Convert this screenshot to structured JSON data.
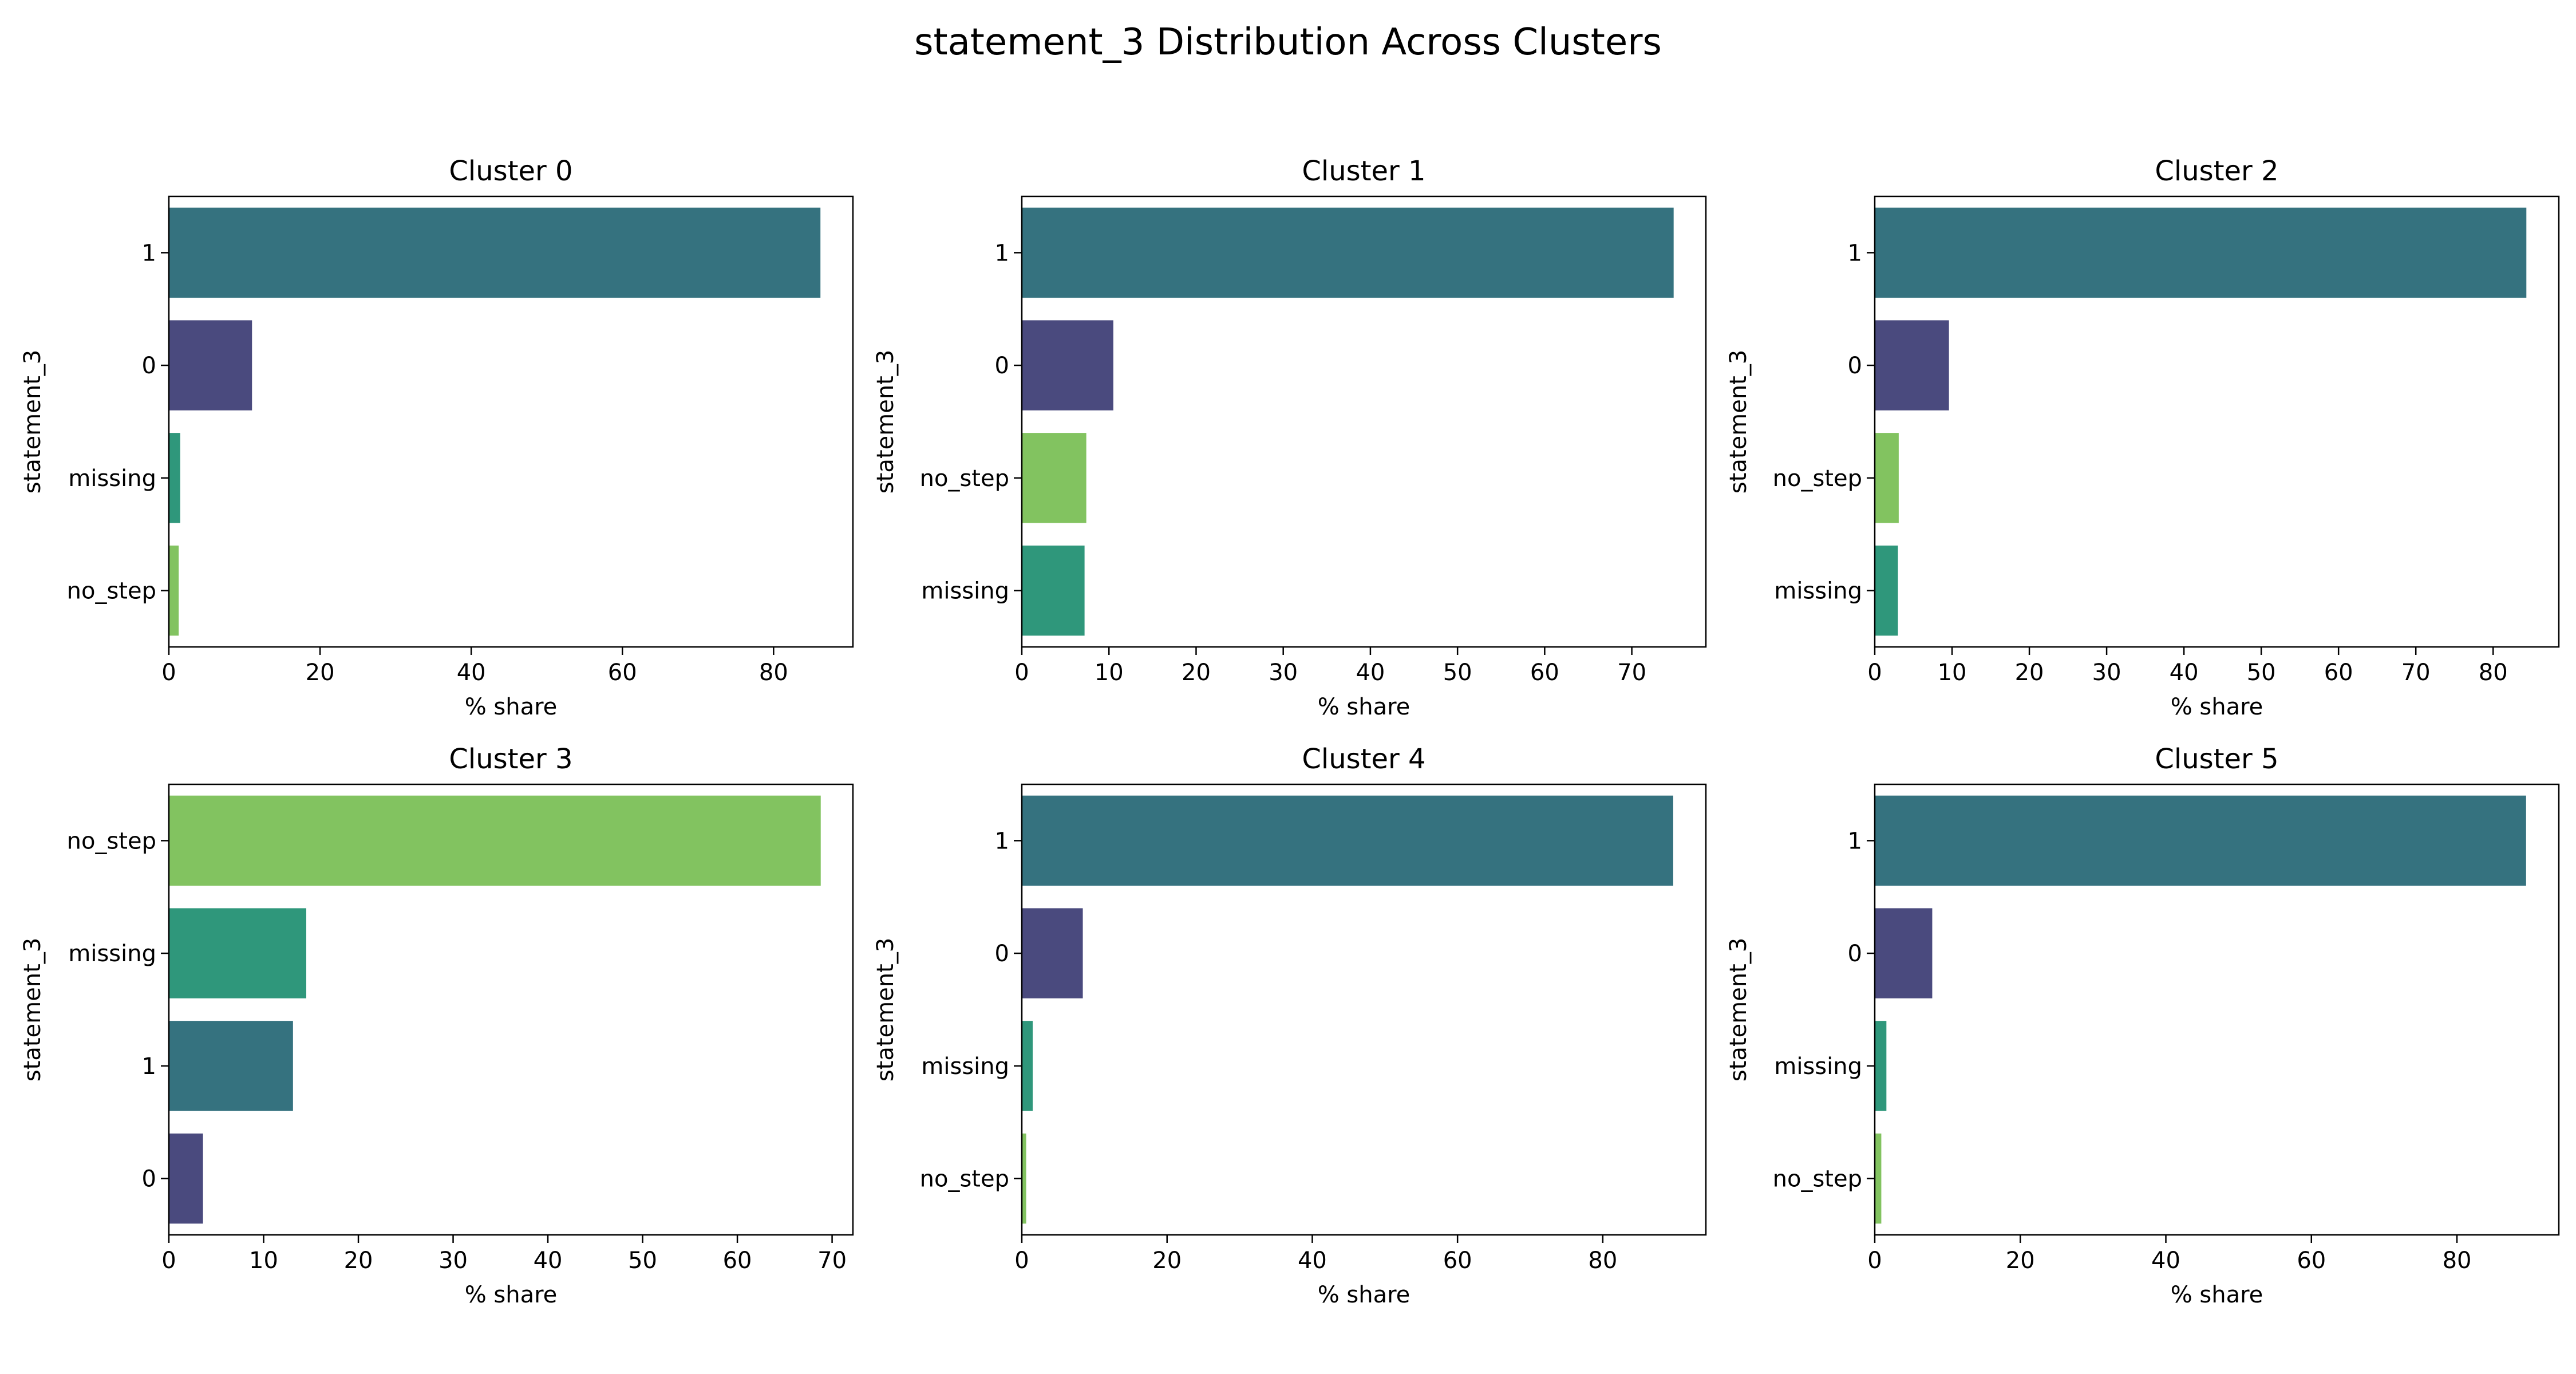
{
  "title": "statement_3 Distribution Across Clusters",
  "colors": {
    "1": "#35727F",
    "0": "#4A4A7E",
    "missing": "#2F977B",
    "no_step": "#82C360",
    "axis": "#000000"
  },
  "chart_data": [
    {
      "type": "bar",
      "orientation": "horizontal",
      "title": "Cluster 0",
      "xlabel": "% share",
      "ylabel": "statement_3",
      "categories": [
        "1",
        "0",
        "missing",
        "no_step"
      ],
      "values": [
        86.2,
        11.0,
        1.5,
        1.3
      ],
      "xlim": [
        0,
        90.5
      ],
      "xticks": [
        0,
        20,
        40,
        60,
        80
      ]
    },
    {
      "type": "bar",
      "orientation": "horizontal",
      "title": "Cluster 1",
      "xlabel": "% share",
      "ylabel": "statement_3",
      "categories": [
        "1",
        "0",
        "no_step",
        "missing"
      ],
      "values": [
        74.8,
        10.5,
        7.4,
        7.2
      ],
      "xlim": [
        0,
        78.5
      ],
      "xticks": [
        0,
        10,
        20,
        30,
        40,
        50,
        60,
        70
      ]
    },
    {
      "type": "bar",
      "orientation": "horizontal",
      "title": "Cluster 2",
      "xlabel": "% share",
      "ylabel": "statement_3",
      "categories": [
        "1",
        "0",
        "no_step",
        "missing"
      ],
      "values": [
        84.3,
        9.6,
        3.1,
        3.0
      ],
      "xlim": [
        0,
        88.5
      ],
      "xticks": [
        0,
        10,
        20,
        30,
        40,
        50,
        60,
        70,
        80
      ]
    },
    {
      "type": "bar",
      "orientation": "horizontal",
      "title": "Cluster 3",
      "xlabel": "% share",
      "ylabel": "statement_3",
      "categories": [
        "no_step",
        "missing",
        "1",
        "0"
      ],
      "values": [
        68.8,
        14.5,
        13.1,
        3.6
      ],
      "xlim": [
        0,
        72.2
      ],
      "xticks": [
        0,
        10,
        20,
        30,
        40,
        50,
        60,
        70
      ]
    },
    {
      "type": "bar",
      "orientation": "horizontal",
      "title": "Cluster 4",
      "xlabel": "% share",
      "ylabel": "statement_3",
      "categories": [
        "1",
        "0",
        "missing",
        "no_step"
      ],
      "values": [
        89.7,
        8.4,
        1.5,
        0.6
      ],
      "xlim": [
        0,
        94.2
      ],
      "xticks": [
        0,
        20,
        40,
        60,
        80
      ]
    },
    {
      "type": "bar",
      "orientation": "horizontal",
      "title": "Cluster 5",
      "xlabel": "% share",
      "ylabel": "statement_3",
      "categories": [
        "1",
        "0",
        "missing",
        "no_step"
      ],
      "values": [
        89.5,
        7.9,
        1.6,
        0.9
      ],
      "xlim": [
        0,
        94.0
      ],
      "xticks": [
        0,
        20,
        40,
        60,
        80
      ]
    }
  ]
}
